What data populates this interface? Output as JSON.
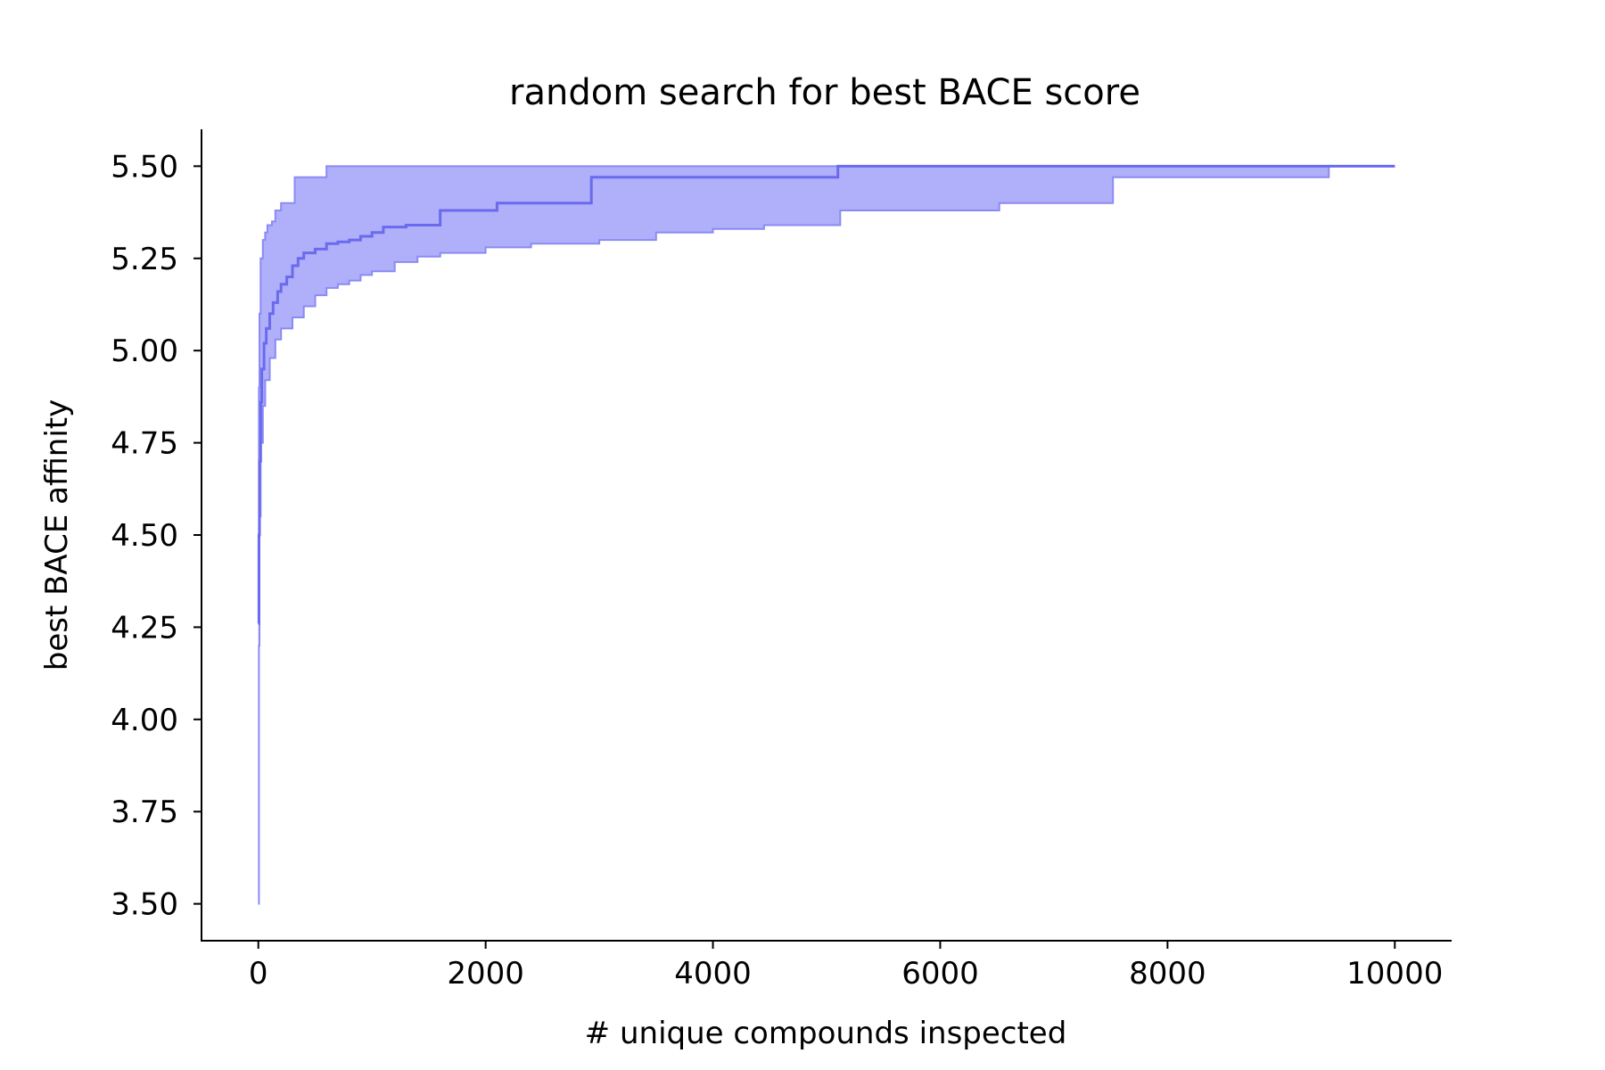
{
  "chart_data": {
    "type": "line",
    "title": "random search for best BACE score",
    "xlabel": "# unique compounds inspected",
    "ylabel": "best BACE affinity",
    "xlim": [
      -500,
      10500
    ],
    "ylim": [
      3.4,
      5.6
    ],
    "xticks": [
      0,
      2000,
      4000,
      6000,
      8000,
      10000
    ],
    "xtick_labels": [
      "0",
      "2000",
      "4000",
      "6000",
      "8000",
      "10000"
    ],
    "yticks": [
      3.5,
      3.75,
      4.0,
      4.25,
      4.5,
      4.75,
      5.0,
      5.25,
      5.5
    ],
    "ytick_labels": [
      "3.50",
      "3.75",
      "4.00",
      "4.25",
      "4.50",
      "4.75",
      "5.00",
      "5.25",
      "5.50"
    ],
    "grid": false,
    "colors": {
      "line": "#6a6aee",
      "band": "#b0b0fa",
      "band_edge": "#8a8af4",
      "axis": "#000000"
    },
    "series": [
      {
        "role": "mean",
        "x": [
          0,
          5,
          10,
          20,
          30,
          50,
          70,
          100,
          130,
          170,
          200,
          250,
          300,
          350,
          400,
          500,
          600,
          700,
          800,
          900,
          1000,
          1100,
          1300,
          1550,
          1600,
          2050,
          2100,
          2900,
          2930,
          5050,
          5100,
          10000
        ],
        "y": [
          4.26,
          4.5,
          4.7,
          4.86,
          4.95,
          5.02,
          5.06,
          5.1,
          5.13,
          5.16,
          5.18,
          5.2,
          5.23,
          5.25,
          5.265,
          5.275,
          5.29,
          5.295,
          5.3,
          5.31,
          5.32,
          5.335,
          5.34,
          5.34,
          5.38,
          5.38,
          5.4,
          5.4,
          5.47,
          5.47,
          5.5,
          5.5
        ]
      },
      {
        "role": "upper",
        "x": [
          0,
          5,
          10,
          20,
          40,
          60,
          80,
          120,
          150,
          200,
          300,
          320,
          580,
          600,
          10000
        ],
        "y": [
          4.26,
          4.9,
          5.1,
          5.25,
          5.3,
          5.32,
          5.34,
          5.35,
          5.38,
          5.4,
          5.4,
          5.47,
          5.47,
          5.5,
          5.5
        ]
      },
      {
        "role": "lower",
        "x": [
          0,
          5,
          10,
          20,
          40,
          60,
          100,
          150,
          200,
          300,
          400,
          500,
          600,
          700,
          800,
          900,
          1000,
          1200,
          1400,
          1600,
          2000,
          2400,
          3000,
          3500,
          4000,
          4450,
          5100,
          5120,
          6500,
          6520,
          7500,
          7520,
          9400,
          9420,
          10000
        ],
        "y": [
          3.5,
          4.2,
          4.55,
          4.75,
          4.85,
          4.92,
          4.98,
          5.03,
          5.06,
          5.09,
          5.12,
          5.15,
          5.17,
          5.18,
          5.19,
          5.205,
          5.215,
          5.24,
          5.255,
          5.265,
          5.28,
          5.29,
          5.3,
          5.32,
          5.33,
          5.34,
          5.34,
          5.38,
          5.38,
          5.4,
          5.4,
          5.47,
          5.47,
          5.5,
          5.5
        ]
      }
    ]
  }
}
